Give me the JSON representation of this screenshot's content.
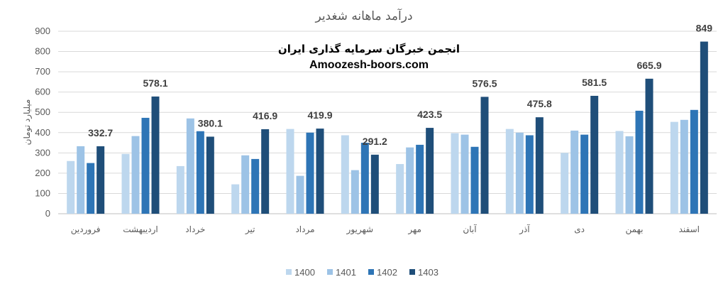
{
  "chart_data": {
    "type": "bar",
    "title": "درآمد ماهانه شغدیر",
    "ylabel": "میلیارد تومان",
    "xlabel": "",
    "ylim": [
      0,
      900
    ],
    "yticks": [
      0,
      100,
      200,
      300,
      400,
      500,
      600,
      700,
      800,
      900
    ],
    "grid": true,
    "legend_position": "bottom",
    "categories": [
      "فروردین",
      "اردیبهشت",
      "خرداد",
      "تیر",
      "مرداد",
      "شهریور",
      "مهر",
      "آبان",
      "آذر",
      "دی",
      "بهمن",
      "اسفند"
    ],
    "series": [
      {
        "name": "1400",
        "color": "#bdd7ee",
        "values": [
          260,
          295,
          235,
          145,
          418,
          387,
          245,
          397,
          418,
          300,
          408,
          453
        ]
      },
      {
        "name": "1401",
        "color": "#9dc3e6",
        "values": [
          333,
          383,
          470,
          288,
          187,
          215,
          327,
          390,
          400,
          410,
          382,
          463
        ]
      },
      {
        "name": "1402",
        "color": "#2e75b6",
        "values": [
          250,
          473,
          407,
          270,
          400,
          350,
          340,
          330,
          387,
          390,
          508,
          512
        ]
      },
      {
        "name": "1403",
        "color": "#1f4e79",
        "values": [
          332.7,
          578.1,
          380.1,
          416.9,
          419.9,
          291.2,
          423.5,
          576.5,
          475.8,
          581.5,
          665.9,
          849
        ]
      }
    ],
    "data_labels": [
      "332.7",
      "578.1",
      "380.1",
      "416.9",
      "419.9",
      "291.2",
      "423.5",
      "576.5",
      "475.8",
      "581.5",
      "665.9",
      "849"
    ]
  },
  "watermark": {
    "line1": "انجمن خبرگان سرمایه گذاری ایران",
    "line2": "Amoozesh-boors.com"
  }
}
